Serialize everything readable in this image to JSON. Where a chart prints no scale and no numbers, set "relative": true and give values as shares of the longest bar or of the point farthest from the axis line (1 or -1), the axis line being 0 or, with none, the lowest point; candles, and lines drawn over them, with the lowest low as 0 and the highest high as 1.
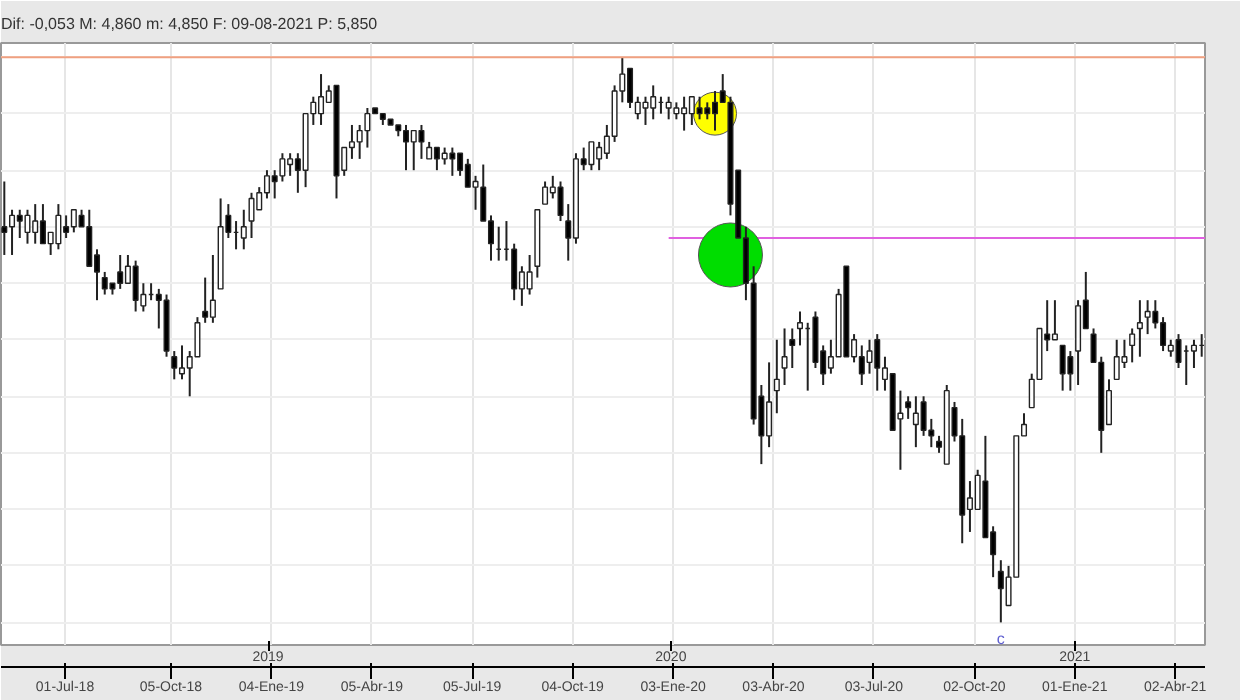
{
  "chart_data": {
    "type": "candlestick",
    "title": "Dif: -0,053 M: 4,860 m: 4,850 F: 09-08-2021 P: 5,850",
    "relative": true,
    "grid": true,
    "x": [
      "2018-05-07",
      "2018-05-14",
      "2018-05-21",
      "2018-05-28",
      "2018-06-04",
      "2018-06-11",
      "2018-06-18",
      "2018-06-25",
      "2018-07-02",
      "2018-07-09",
      "2018-07-16",
      "2018-07-23",
      "2018-07-30",
      "2018-08-06",
      "2018-08-13",
      "2018-08-20",
      "2018-08-27",
      "2018-09-03",
      "2018-09-10",
      "2018-09-17",
      "2018-09-24",
      "2018-10-01",
      "2018-10-08",
      "2018-10-15",
      "2018-10-22",
      "2018-10-29",
      "2018-11-05",
      "2018-11-12",
      "2018-11-19",
      "2018-11-26",
      "2018-12-03",
      "2018-12-10",
      "2018-12-17",
      "2018-12-24",
      "2018-12-31",
      "2019-01-07",
      "2019-01-14",
      "2019-01-21",
      "2019-01-28",
      "2019-02-04",
      "2019-02-11",
      "2019-02-18",
      "2019-02-25",
      "2019-03-04",
      "2019-03-11",
      "2019-03-18",
      "2019-03-25",
      "2019-04-01",
      "2019-04-08",
      "2019-04-15",
      "2019-04-22",
      "2019-04-29",
      "2019-05-06",
      "2019-05-13",
      "2019-05-20",
      "2019-05-27",
      "2019-06-03",
      "2019-06-10",
      "2019-06-17",
      "2019-06-24",
      "2019-07-01",
      "2019-07-08",
      "2019-07-15",
      "2019-07-22",
      "2019-07-29",
      "2019-08-05",
      "2019-08-12",
      "2019-08-19",
      "2019-08-26",
      "2019-09-02",
      "2019-09-09",
      "2019-09-16",
      "2019-09-23",
      "2019-09-30",
      "2019-10-07",
      "2019-10-14",
      "2019-10-21",
      "2019-10-28",
      "2019-11-04",
      "2019-11-11",
      "2019-11-18",
      "2019-11-25",
      "2019-12-02",
      "2019-12-09",
      "2019-12-16",
      "2019-12-23",
      "2019-12-30",
      "2020-01-06",
      "2020-01-13",
      "2020-01-20",
      "2020-01-27",
      "2020-02-03",
      "2020-02-10",
      "2020-02-17",
      "2020-02-24",
      "2020-03-02",
      "2020-03-09",
      "2020-03-16",
      "2020-03-23",
      "2020-03-30",
      "2020-04-06",
      "2020-04-13",
      "2020-04-20",
      "2020-04-27",
      "2020-05-04",
      "2020-05-11",
      "2020-05-18",
      "2020-05-25",
      "2020-06-01",
      "2020-06-08",
      "2020-06-15",
      "2020-06-22",
      "2020-06-29",
      "2020-07-06",
      "2020-07-13",
      "2020-07-20",
      "2020-07-27",
      "2020-08-03",
      "2020-08-10",
      "2020-08-17",
      "2020-08-24",
      "2020-08-31",
      "2020-09-07",
      "2020-09-14",
      "2020-09-21",
      "2020-09-28",
      "2020-10-05",
      "2020-10-12",
      "2020-10-19",
      "2020-10-26",
      "2020-11-02",
      "2020-11-09",
      "2020-11-16",
      "2020-11-23",
      "2020-11-30",
      "2020-12-07",
      "2020-12-14",
      "2020-12-21",
      "2020-12-28",
      "2021-01-04",
      "2021-01-11",
      "2021-01-18",
      "2021-01-25",
      "2021-02-01",
      "2021-02-08",
      "2021-02-15",
      "2021-02-22",
      "2021-03-01",
      "2021-03-08",
      "2021-03-15",
      "2021-03-22",
      "2021-03-29",
      "2021-04-05",
      "2021-04-12",
      "2021-04-19",
      "2021-04-26"
    ],
    "ohlc": [
      [
        0.7,
        0.78,
        0.65,
        0.69
      ],
      [
        0.7,
        0.73,
        0.65,
        0.72
      ],
      [
        0.72,
        0.73,
        0.68,
        0.71
      ],
      [
        0.69,
        0.73,
        0.67,
        0.72
      ],
      [
        0.69,
        0.74,
        0.67,
        0.71
      ],
      [
        0.71,
        0.74,
        0.67,
        0.67
      ],
      [
        0.67,
        0.69,
        0.65,
        0.69
      ],
      [
        0.67,
        0.74,
        0.66,
        0.72
      ],
      [
        0.7,
        0.72,
        0.68,
        0.69
      ],
      [
        0.7,
        0.73,
        0.69,
        0.73
      ],
      [
        0.72,
        0.73,
        0.7,
        0.7
      ],
      [
        0.7,
        0.73,
        0.63,
        0.63
      ],
      [
        0.65,
        0.66,
        0.57,
        0.62
      ],
      [
        0.61,
        0.62,
        0.58,
        0.59
      ],
      [
        0.6,
        0.6,
        0.58,
        0.59
      ],
      [
        0.62,
        0.65,
        0.59,
        0.6
      ],
      [
        0.6,
        0.65,
        0.6,
        0.63
      ],
      [
        0.63,
        0.64,
        0.55,
        0.57
      ],
      [
        0.56,
        0.6,
        0.55,
        0.58
      ],
      [
        0.58,
        0.6,
        0.57,
        0.58
      ],
      [
        0.58,
        0.59,
        0.52,
        0.57
      ],
      [
        0.57,
        0.58,
        0.47,
        0.48
      ],
      [
        0.47,
        0.48,
        0.43,
        0.45
      ],
      [
        0.44,
        0.49,
        0.43,
        0.45
      ],
      [
        0.45,
        0.48,
        0.4,
        0.47
      ],
      [
        0.47,
        0.54,
        0.47,
        0.53
      ],
      [
        0.55,
        0.61,
        0.53,
        0.54
      ],
      [
        0.54,
        0.65,
        0.53,
        0.57
      ],
      [
        0.59,
        0.75,
        0.59,
        0.7
      ],
      [
        0.72,
        0.74,
        0.68,
        0.69
      ],
      [
        0.69,
        0.71,
        0.66,
        0.69
      ],
      [
        0.68,
        0.73,
        0.66,
        0.7
      ],
      [
        0.71,
        0.76,
        0.68,
        0.75
      ],
      [
        0.73,
        0.77,
        0.73,
        0.76
      ],
      [
        0.76,
        0.8,
        0.75,
        0.79
      ],
      [
        0.79,
        0.8,
        0.75,
        0.78
      ],
      [
        0.79,
        0.83,
        0.78,
        0.82
      ],
      [
        0.81,
        0.83,
        0.79,
        0.82
      ],
      [
        0.82,
        0.83,
        0.76,
        0.8
      ],
      [
        0.8,
        0.9,
        0.77,
        0.9
      ],
      [
        0.9,
        0.93,
        0.88,
        0.92
      ],
      [
        0.9,
        0.97,
        0.88,
        0.93
      ],
      [
        0.92,
        0.95,
        0.92,
        0.94
      ],
      [
        0.95,
        0.95,
        0.75,
        0.79
      ],
      [
        0.8,
        0.84,
        0.79,
        0.84
      ],
      [
        0.84,
        0.88,
        0.82,
        0.85
      ],
      [
        0.85,
        0.88,
        0.82,
        0.87
      ],
      [
        0.87,
        0.91,
        0.84,
        0.9
      ],
      [
        0.91,
        0.91,
        0.9,
        0.9
      ],
      [
        0.9,
        0.9,
        0.88,
        0.89
      ],
      [
        0.89,
        0.89,
        0.88,
        0.88
      ],
      [
        0.88,
        0.88,
        0.86,
        0.87
      ],
      [
        0.87,
        0.88,
        0.8,
        0.85
      ],
      [
        0.85,
        0.87,
        0.8,
        0.87
      ],
      [
        0.87,
        0.88,
        0.82,
        0.85
      ],
      [
        0.82,
        0.85,
        0.82,
        0.84
      ],
      [
        0.84,
        0.84,
        0.8,
        0.82
      ],
      [
        0.82,
        0.84,
        0.81,
        0.83
      ],
      [
        0.83,
        0.84,
        0.79,
        0.82
      ],
      [
        0.83,
        0.83,
        0.79,
        0.8
      ],
      [
        0.81,
        0.82,
        0.77,
        0.77
      ],
      [
        0.77,
        0.79,
        0.73,
        0.78
      ],
      [
        0.77,
        0.81,
        0.71,
        0.71
      ],
      [
        0.71,
        0.72,
        0.64,
        0.67
      ],
      [
        0.66,
        0.7,
        0.64,
        0.66
      ],
      [
        0.66,
        0.71,
        0.64,
        0.66
      ],
      [
        0.66,
        0.67,
        0.57,
        0.59
      ],
      [
        0.59,
        0.63,
        0.56,
        0.62
      ],
      [
        0.59,
        0.65,
        0.58,
        0.62
      ],
      [
        0.63,
        0.73,
        0.61,
        0.73
      ],
      [
        0.74,
        0.78,
        0.74,
        0.77
      ],
      [
        0.76,
        0.79,
        0.75,
        0.77
      ],
      [
        0.77,
        0.78,
        0.71,
        0.72
      ],
      [
        0.71,
        0.74,
        0.64,
        0.68
      ],
      [
        0.68,
        0.83,
        0.67,
        0.82
      ],
      [
        0.82,
        0.84,
        0.8,
        0.81
      ],
      [
        0.81,
        0.85,
        0.8,
        0.85
      ],
      [
        0.82,
        0.85,
        0.8,
        0.84
      ],
      [
        0.83,
        0.88,
        0.82,
        0.86
      ],
      [
        0.86,
        0.95,
        0.85,
        0.94
      ],
      [
        0.94,
        1.0,
        0.92,
        0.97
      ],
      [
        0.98,
        0.98,
        0.91,
        0.92
      ],
      [
        0.9,
        0.93,
        0.89,
        0.92
      ],
      [
        0.91,
        0.93,
        0.88,
        0.92
      ],
      [
        0.91,
        0.95,
        0.89,
        0.93
      ],
      [
        0.92,
        0.93,
        0.9,
        0.92
      ],
      [
        0.91,
        0.93,
        0.89,
        0.92
      ],
      [
        0.9,
        0.92,
        0.89,
        0.91
      ],
      [
        0.9,
        0.93,
        0.87,
        0.91
      ],
      [
        0.9,
        0.93,
        0.88,
        0.93
      ],
      [
        0.91,
        0.93,
        0.89,
        0.9
      ],
      [
        0.91,
        0.92,
        0.89,
        0.9
      ],
      [
        0.92,
        0.94,
        0.87,
        0.9
      ],
      [
        0.94,
        0.97,
        0.92,
        0.92
      ],
      [
        0.92,
        0.93,
        0.72,
        0.74
      ],
      [
        0.8,
        0.8,
        0.68,
        0.68
      ],
      [
        0.68,
        0.7,
        0.57,
        0.6
      ],
      [
        0.6,
        0.63,
        0.35,
        0.36
      ],
      [
        0.4,
        0.42,
        0.28,
        0.33
      ],
      [
        0.33,
        0.46,
        0.31,
        0.39
      ],
      [
        0.41,
        0.5,
        0.37,
        0.43
      ],
      [
        0.45,
        0.52,
        0.42,
        0.47
      ],
      [
        0.5,
        0.52,
        0.45,
        0.49
      ],
      [
        0.52,
        0.55,
        0.49,
        0.53
      ],
      [
        0.52,
        0.53,
        0.41,
        0.52
      ],
      [
        0.54,
        0.55,
        0.45,
        0.46
      ],
      [
        0.48,
        0.49,
        0.42,
        0.44
      ],
      [
        0.45,
        0.5,
        0.44,
        0.47
      ],
      [
        0.47,
        0.59,
        0.47,
        0.58
      ],
      [
        0.63,
        0.63,
        0.47,
        0.47
      ],
      [
        0.47,
        0.51,
        0.46,
        0.5
      ],
      [
        0.47,
        0.49,
        0.42,
        0.44
      ],
      [
        0.46,
        0.5,
        0.44,
        0.48
      ],
      [
        0.5,
        0.51,
        0.41,
        0.45
      ],
      [
        0.43,
        0.47,
        0.41,
        0.45
      ],
      [
        0.44,
        0.44,
        0.34,
        0.34
      ],
      [
        0.36,
        0.41,
        0.27,
        0.37
      ],
      [
        0.39,
        0.4,
        0.36,
        0.38
      ],
      [
        0.35,
        0.4,
        0.31,
        0.37
      ],
      [
        0.39,
        0.4,
        0.33,
        0.34
      ],
      [
        0.34,
        0.36,
        0.31,
        0.33
      ],
      [
        0.32,
        0.33,
        0.3,
        0.31
      ],
      [
        0.28,
        0.42,
        0.28,
        0.41
      ],
      [
        0.38,
        0.39,
        0.32,
        0.33
      ],
      [
        0.33,
        0.36,
        0.14,
        0.19
      ],
      [
        0.2,
        0.25,
        0.16,
        0.22
      ],
      [
        0.2,
        0.27,
        0.2,
        0.26
      ],
      [
        0.25,
        0.33,
        0.15,
        0.15
      ],
      [
        0.16,
        0.17,
        0.08,
        0.12
      ],
      [
        0.09,
        0.11,
        0.0,
        0.06
      ],
      [
        0.03,
        0.1,
        0.03,
        0.08
      ],
      [
        0.08,
        0.33,
        0.08,
        0.33
      ],
      [
        0.33,
        0.37,
        0.33,
        0.35
      ],
      [
        0.38,
        0.44,
        0.38,
        0.43
      ],
      [
        0.43,
        0.52,
        0.43,
        0.52
      ],
      [
        0.51,
        0.57,
        0.48,
        0.5
      ],
      [
        0.5,
        0.57,
        0.5,
        0.51
      ],
      [
        0.49,
        0.49,
        0.41,
        0.44
      ],
      [
        0.47,
        0.48,
        0.41,
        0.44
      ],
      [
        0.48,
        0.57,
        0.42,
        0.56
      ],
      [
        0.57,
        0.62,
        0.52,
        0.52
      ],
      [
        0.51,
        0.52,
        0.46,
        0.46
      ],
      [
        0.46,
        0.47,
        0.3,
        0.34
      ],
      [
        0.35,
        0.43,
        0.35,
        0.41
      ],
      [
        0.43,
        0.5,
        0.43,
        0.47
      ],
      [
        0.46,
        0.5,
        0.45,
        0.47
      ],
      [
        0.49,
        0.52,
        0.46,
        0.51
      ],
      [
        0.52,
        0.57,
        0.47,
        0.53
      ],
      [
        0.54,
        0.57,
        0.51,
        0.55
      ],
      [
        0.55,
        0.57,
        0.52,
        0.53
      ],
      [
        0.53,
        0.54,
        0.48,
        0.49
      ],
      [
        0.48,
        0.5,
        0.47,
        0.49
      ],
      [
        0.5,
        0.51,
        0.45,
        0.46
      ],
      [
        0.48,
        0.49,
        0.42,
        0.48
      ],
      [
        0.48,
        0.5,
        0.45,
        0.49
      ],
      [
        0.49,
        0.51,
        0.47,
        0.49
      ]
    ],
    "series": [
      {
        "type": "line",
        "color": "#e060e0",
        "x": [
          "2019-12-30",
          "2021-04-29"
        ],
        "values": [
          0.68,
          0.68
        ]
      },
      {
        "type": "bubble",
        "colors": [
          "#ffff00",
          "#00dd00"
        ],
        "x": [
          "2020-02-10",
          "2020-02-24"
        ],
        "values": [
          0.9,
          0.65
        ],
        "sizes": [
          0.45,
          1
        ]
      }
    ],
    "ref_lines": [
      {
        "axis": "y",
        "value": 1.0,
        "color": "#f0a080"
      }
    ],
    "annotations": [
      {
        "text": "c",
        "x": "2020-10-26",
        "y": 0.0
      }
    ],
    "xlim": [
      "2018-05-04",
      "2021-04-29"
    ],
    "xticks": [
      {
        "value": "2018-07-01",
        "label": "01-Jul-18"
      },
      {
        "value": "2018-10-05",
        "label": "05-Oct-18"
      },
      {
        "value": "2019-01-04",
        "label": "04-Ene-19"
      },
      {
        "value": "2019-04-05",
        "label": "05-Abr-19"
      },
      {
        "value": "2019-07-05",
        "label": "05-Jul-19"
      },
      {
        "value": "2019-10-04",
        "label": "04-Oct-19"
      },
      {
        "value": "2020-01-03",
        "label": "03-Ene-20"
      },
      {
        "value": "2020-04-03",
        "label": "03-Abr-20"
      },
      {
        "value": "2020-07-03",
        "label": "03-Jul-20"
      },
      {
        "value": "2020-10-02",
        "label": "02-Oct-20"
      },
      {
        "value": "2021-01-01",
        "label": "01-Ene-21"
      },
      {
        "value": "2021-04-02",
        "label": "02-Abr-21"
      }
    ],
    "x2lim": [
      "2018-05-04",
      "2021-04-29"
    ],
    "x2ticks": [
      {
        "value": "2019-01-01",
        "label": "2019"
      },
      {
        "value": "2020-01-01",
        "label": "2020"
      },
      {
        "value": "2021-01-01",
        "label": "2021"
      }
    ]
  }
}
